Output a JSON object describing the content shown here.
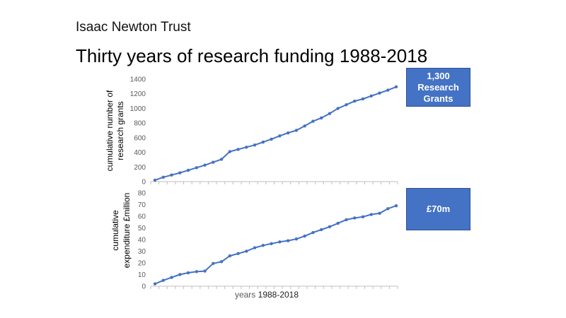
{
  "header": {
    "org_name": "Isaac Newton Trust",
    "title": "Thirty years of research funding 1988-2018"
  },
  "callouts": {
    "grants": "1,300 Research Grants",
    "expenditure": "£70m"
  },
  "colors": {
    "series": "#4472C4",
    "callout_fill": "#4472C4",
    "axis": "#BFBFBF"
  },
  "chart_data": [
    {
      "type": "line",
      "title": "",
      "ylabel_lines": [
        "cumulative number of",
        "research grants"
      ],
      "xlabel": "",
      "ylim": [
        0,
        1400
      ],
      "yticks": [
        0,
        200,
        400,
        600,
        800,
        1000,
        1200,
        1400
      ],
      "grid": false,
      "legend": "none",
      "series": [
        {
          "values": [
            20,
            60,
            90,
            120,
            155,
            190,
            225,
            265,
            305,
            410,
            440,
            470,
            500,
            540,
            580,
            625,
            665,
            700,
            760,
            825,
            870,
            930,
            1000,
            1050,
            1100,
            1130,
            1170,
            1210,
            1250,
            1295
          ]
        }
      ]
    },
    {
      "type": "line",
      "title": "",
      "ylabel_lines": [
        "cumulative",
        "expenditure £million"
      ],
      "xlabel_parts": [
        "years",
        "1988-2018"
      ],
      "ylim": [
        0,
        80
      ],
      "yticks": [
        0,
        10,
        20,
        30,
        40,
        50,
        60,
        70,
        80
      ],
      "grid": false,
      "legend": "none",
      "series": [
        {
          "values": [
            2,
            5,
            7.5,
            10,
            11.5,
            12.5,
            13,
            19.5,
            21,
            26,
            28,
            30,
            33,
            35,
            36.5,
            38,
            39,
            40.5,
            43,
            46,
            48.5,
            51,
            54,
            57,
            58.5,
            59.5,
            61.5,
            62.5,
            66.5,
            69
          ]
        }
      ]
    }
  ]
}
